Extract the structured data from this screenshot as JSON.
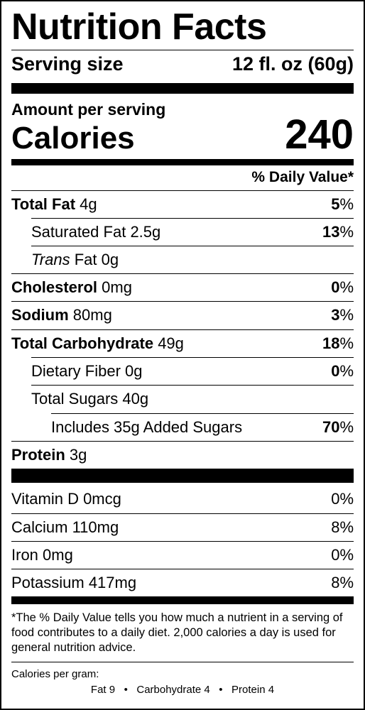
{
  "title": "Nutrition Facts",
  "serving": {
    "label": "Serving size",
    "value": "12 fl. oz (60g)"
  },
  "amount_per_serving": "Amount per serving",
  "calories": {
    "label": "Calories",
    "value": "240"
  },
  "dv_header": "% Daily Value*",
  "nutrients": {
    "total_fat": {
      "name": "Total Fat",
      "amount": "4g",
      "dv": "5"
    },
    "saturated_fat": {
      "name": "Saturated Fat",
      "amount": "2.5g",
      "dv": "13"
    },
    "trans_fat": {
      "name_italic": "Trans",
      "name": "Fat",
      "amount": "0g"
    },
    "cholesterol": {
      "name": "Cholesterol",
      "amount": "0mg",
      "dv": "0"
    },
    "sodium": {
      "name": "Sodium",
      "amount": "80mg",
      "dv": "3"
    },
    "total_carb": {
      "name": "Total Carbohydrate",
      "amount": "49g",
      "dv": "18"
    },
    "fiber": {
      "name": "Dietary Fiber",
      "amount": "0g",
      "dv": "0"
    },
    "total_sugars": {
      "name": "Total Sugars",
      "amount": "40g"
    },
    "added_sugars": {
      "text": "Includes 35g Added Sugars",
      "dv": "70"
    },
    "protein": {
      "name": "Protein",
      "amount": "3g"
    }
  },
  "percent_sign": "%",
  "vitamins": {
    "vitamin_d": {
      "text": "Vitamin D 0mcg",
      "dv": "0%"
    },
    "calcium": {
      "text": "Calcium 110mg",
      "dv": "8%"
    },
    "iron": {
      "text": "Iron 0mg",
      "dv": "0%"
    },
    "potassium": {
      "text": "Potassium 417mg",
      "dv": "8%"
    }
  },
  "footnote": "*The % Daily Value tells you how much a nutrient in a serving of food contributes to a daily diet. 2,000 calories a day is used for general nutrition advice.",
  "calories_per_gram": {
    "title": "Calories per gram:",
    "line": "Fat 9   •   Carbohydrate 4   •   Protein 4"
  }
}
